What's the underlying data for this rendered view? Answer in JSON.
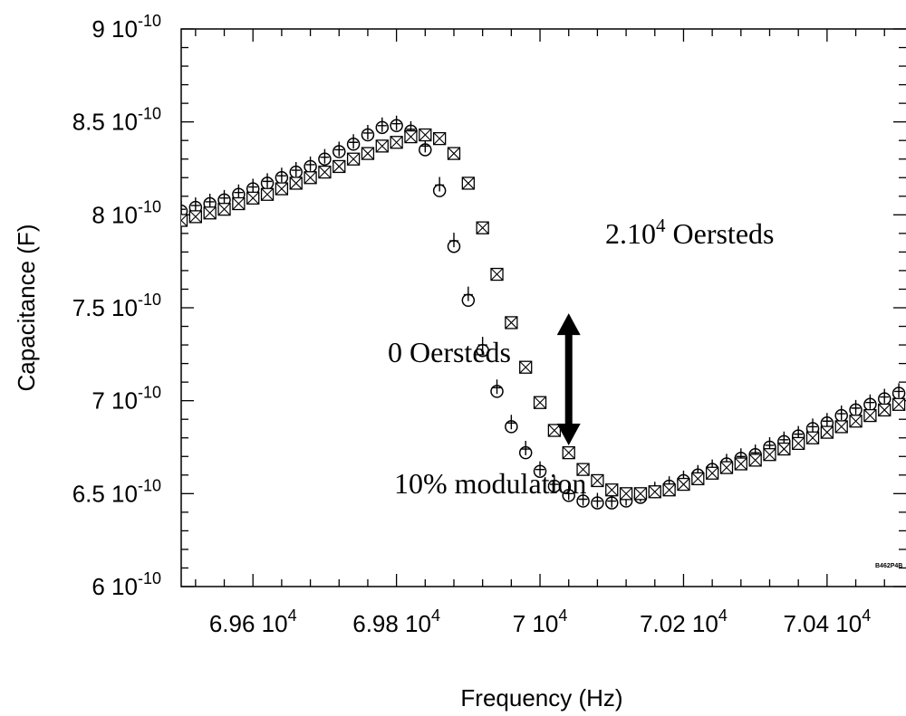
{
  "chart_data": {
    "type": "scatter",
    "xlabel": "Frequency (Hz)",
    "ylabel": "Capacitance (F)",
    "xlim": [
      69500,
      70510
    ],
    "ylim": [
      6e-10,
      9e-10
    ],
    "grid": false,
    "x_ticks": [
      {
        "value": 69600,
        "mantissa": "6.96 10",
        "exp": "4"
      },
      {
        "value": 69800,
        "mantissa": "6.98 10",
        "exp": "4"
      },
      {
        "value": 70000,
        "mantissa": "7 10",
        "exp": "4"
      },
      {
        "value": 70200,
        "mantissa": "7.02 10",
        "exp": "4"
      },
      {
        "value": 70400,
        "mantissa": "7.04 10",
        "exp": "4"
      }
    ],
    "y_ticks": [
      {
        "value": 6e-10,
        "mantissa": "6 10",
        "exp": "-10"
      },
      {
        "value": 6.5e-10,
        "mantissa": "6.5 10",
        "exp": "-10"
      },
      {
        "value": 7e-10,
        "mantissa": "7 10",
        "exp": "-10"
      },
      {
        "value": 7.5e-10,
        "mantissa": "7.5 10",
        "exp": "-10"
      },
      {
        "value": 8e-10,
        "mantissa": "8 10",
        "exp": "-10"
      },
      {
        "value": 8.5e-10,
        "mantissa": "8.5 10",
        "exp": "-10"
      },
      {
        "value": 9e-10,
        "mantissa": "9 10",
        "exp": "-10"
      }
    ],
    "series": [
      {
        "marker": "circle",
        "x": [
          69500,
          69520,
          69540,
          69560,
          69580,
          69600,
          69620,
          69640,
          69660,
          69680,
          69700,
          69720,
          69740,
          69760,
          69780,
          69800,
          69820,
          69840,
          69860,
          69880,
          69900,
          69920,
          69940,
          69960,
          69980,
          70000,
          70020,
          70040,
          70060,
          70080,
          70100,
          70120,
          70140,
          70160,
          70180,
          70200,
          70220,
          70240,
          70260,
          70280,
          70300,
          70320,
          70340,
          70360,
          70380,
          70400,
          70420,
          70440,
          70460,
          70480,
          70500
        ],
        "y": [
          8.02e-10,
          8.04e-10,
          8.06e-10,
          8.08e-10,
          8.11e-10,
          8.14e-10,
          8.17e-10,
          8.2e-10,
          8.23e-10,
          8.26e-10,
          8.3e-10,
          8.34e-10,
          8.38e-10,
          8.43e-10,
          8.47e-10,
          8.48e-10,
          8.45e-10,
          8.35e-10,
          8.13e-10,
          7.83e-10,
          7.54e-10,
          7.27e-10,
          7.05e-10,
          6.86e-10,
          6.72e-10,
          6.62e-10,
          6.54e-10,
          6.49e-10,
          6.46e-10,
          6.45e-10,
          6.45e-10,
          6.46e-10,
          6.48e-10,
          6.51e-10,
          6.54e-10,
          6.57e-10,
          6.6e-10,
          6.63e-10,
          6.66e-10,
          6.69e-10,
          6.71e-10,
          6.75e-10,
          6.78e-10,
          6.81e-10,
          6.85e-10,
          6.88e-10,
          6.92e-10,
          6.95e-10,
          6.98e-10,
          7.01e-10,
          7.04e-10
        ]
      },
      {
        "marker": "plus",
        "x": [
          69500,
          69520,
          69540,
          69560,
          69580,
          69600,
          69620,
          69640,
          69660,
          69680,
          69700,
          69720,
          69740,
          69760,
          69780,
          69800,
          69820,
          69840,
          69860,
          69880,
          69900,
          69920,
          69940,
          69960,
          69980,
          70000,
          70020,
          70040,
          70060,
          70080,
          70100,
          70120,
          70140,
          70160,
          70180,
          70200,
          70220,
          70240,
          70260,
          70280,
          70300,
          70320,
          70340,
          70360,
          70380,
          70400,
          70420,
          70440,
          70460,
          70480,
          70500
        ],
        "y": [
          8.03e-10,
          8.05e-10,
          8.07e-10,
          8.09e-10,
          8.12e-10,
          8.15e-10,
          8.18e-10,
          8.21e-10,
          8.24e-10,
          8.27e-10,
          8.31e-10,
          8.35e-10,
          8.39e-10,
          8.44e-10,
          8.48e-10,
          8.49e-10,
          8.46e-10,
          8.37e-10,
          8.16e-10,
          7.86e-10,
          7.57e-10,
          7.3e-10,
          7.07e-10,
          6.88e-10,
          6.74e-10,
          6.63e-10,
          6.55e-10,
          6.5e-10,
          6.47e-10,
          6.46e-10,
          6.46e-10,
          6.47e-10,
          6.49e-10,
          6.52e-10,
          6.55e-10,
          6.58e-10,
          6.61e-10,
          6.64e-10,
          6.67e-10,
          6.7e-10,
          6.72e-10,
          6.76e-10,
          6.79e-10,
          6.82e-10,
          6.86e-10,
          6.89e-10,
          6.93e-10,
          6.96e-10,
          6.99e-10,
          7.02e-10,
          7.05e-10
        ]
      },
      {
        "marker": "boxed-x",
        "x": [
          69500,
          69520,
          69540,
          69560,
          69580,
          69600,
          69620,
          69640,
          69660,
          69680,
          69700,
          69720,
          69740,
          69760,
          69780,
          69800,
          69820,
          69840,
          69860,
          69880,
          69900,
          69920,
          69940,
          69960,
          69980,
          70000,
          70020,
          70040,
          70060,
          70080,
          70100,
          70120,
          70140,
          70160,
          70180,
          70200,
          70220,
          70240,
          70260,
          70280,
          70300,
          70320,
          70340,
          70360,
          70380,
          70400,
          70420,
          70440,
          70460,
          70480,
          70500
        ],
        "y": [
          7.97e-10,
          7.99e-10,
          8.01e-10,
          8.03e-10,
          8.06e-10,
          8.09e-10,
          8.11e-10,
          8.14e-10,
          8.17e-10,
          8.2e-10,
          8.23e-10,
          8.26e-10,
          8.3e-10,
          8.33e-10,
          8.37e-10,
          8.39e-10,
          8.42e-10,
          8.43e-10,
          8.41e-10,
          8.33e-10,
          8.17e-10,
          7.93e-10,
          7.68e-10,
          7.42e-10,
          7.18e-10,
          6.99e-10,
          6.84e-10,
          6.72e-10,
          6.63e-10,
          6.57e-10,
          6.52e-10,
          6.5e-10,
          6.5e-10,
          6.51e-10,
          6.52e-10,
          6.55e-10,
          6.58e-10,
          6.61e-10,
          6.64e-10,
          6.66e-10,
          6.68e-10,
          6.71e-10,
          6.74e-10,
          6.77e-10,
          6.8e-10,
          6.83e-10,
          6.86e-10,
          6.89e-10,
          6.92e-10,
          6.95e-10,
          6.98e-10
        ]
      }
    ],
    "annotations": {
      "field_high": {
        "base": "2.10",
        "sup": "4",
        "rest": " Oersteds"
      },
      "field_zero": "0 Oersteds",
      "modulation": "10% modulation",
      "arrow": {
        "x": 70040,
        "y_top": 7.47e-10,
        "y_bottom": 6.76e-10
      },
      "code": "B462P4B"
    }
  }
}
